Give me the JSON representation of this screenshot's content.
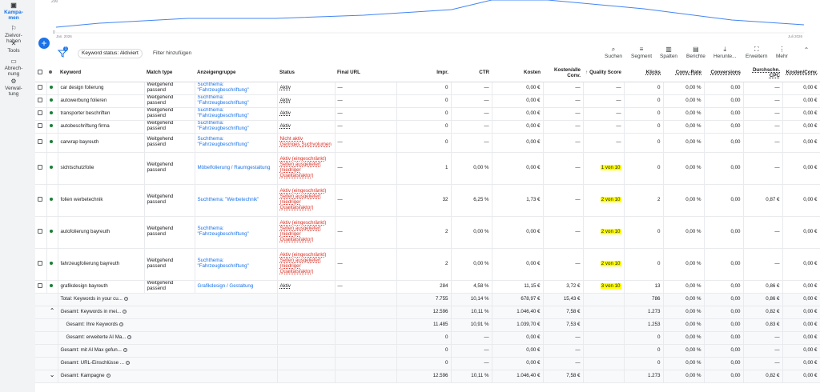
{
  "nav": [
    {
      "label": "Kampa-\nmen",
      "icon": "campaign-icon",
      "active": true
    },
    {
      "label": "Zielvor-\nhaben",
      "icon": "goals-icon",
      "active": false
    },
    {
      "label": "Tools",
      "icon": "tools-icon",
      "active": false
    },
    {
      "label": "Abrech-\nnung",
      "icon": "billing-icon",
      "active": false
    },
    {
      "label": "Verwal-\ntung",
      "icon": "admin-icon",
      "active": false
    }
  ],
  "chart": {
    "y_top": "200",
    "y_bottom": "0",
    "x_start": "Jan. 2026",
    "x_end": "Juli 2026"
  },
  "toolbar": {
    "filter_badge": "1",
    "chip": "Keyword status: Aktiviert",
    "add_filter": "Filter hinzufügen",
    "buttons": [
      {
        "label": "Suchen",
        "icon": "search-icon"
      },
      {
        "label": "Segment",
        "icon": "segment-icon"
      },
      {
        "label": "Spalten",
        "icon": "columns-icon"
      },
      {
        "label": "Berichte",
        "icon": "reports-icon"
      },
      {
        "label": "Herunte...",
        "icon": "download-icon"
      },
      {
        "label": "Erweitern",
        "icon": "expand-icon"
      },
      {
        "label": "Mehr",
        "icon": "more-vert-icon"
      }
    ]
  },
  "columns": [
    "Keyword",
    "Match type",
    "Anzeigengruppe",
    "Status",
    "Final URL",
    "Impr.",
    "CTR",
    "Kosten",
    "Kosten/alle Conv.",
    "Quality Score",
    "Klicks",
    "Conv.-Rate",
    "Conversions",
    "Durchschn. CPC",
    "Kosten/Conv."
  ],
  "rows": [
    {
      "keyword": "car design folierung",
      "match": "Weitgehend passend",
      "group": "Suchthema: \"Fahrzeugbeschriftung\"",
      "status": [
        "Aktiv"
      ],
      "status_red": false,
      "url": "—",
      "impr": "0",
      "ctr": "—",
      "kosten": "0,00 €",
      "kac": "—",
      "qs": "—",
      "klicks": "0",
      "cr": "0,00 %",
      "conv": "0,00",
      "cpc": "—",
      "kpc": "0,00 €"
    },
    {
      "keyword": "autowerbung folieren",
      "match": "Weitgehend passend",
      "group": "Suchthema: \"Fahrzeugbeschriftung\"",
      "status": [
        "Aktiv"
      ],
      "status_red": false,
      "url": "—",
      "impr": "0",
      "ctr": "—",
      "kosten": "0,00 €",
      "kac": "—",
      "qs": "—",
      "klicks": "0",
      "cr": "0,00 %",
      "conv": "0,00",
      "cpc": "—",
      "kpc": "0,00 €"
    },
    {
      "keyword": "transporter beschriften",
      "match": "Weitgehend passend",
      "group": "Suchthema: \"Fahrzeugbeschriftung\"",
      "status": [
        "Aktiv"
      ],
      "status_red": false,
      "url": "—",
      "impr": "0",
      "ctr": "—",
      "kosten": "0,00 €",
      "kac": "—",
      "qs": "—",
      "klicks": "0",
      "cr": "0,00 %",
      "conv": "0,00",
      "cpc": "—",
      "kpc": "0,00 €"
    },
    {
      "keyword": "autobeschriftung firma",
      "match": "Weitgehend passend",
      "group": "Suchthema: \"Fahrzeugbeschriftung\"",
      "status": [
        "Aktiv"
      ],
      "status_red": false,
      "url": "—",
      "impr": "0",
      "ctr": "—",
      "kosten": "0,00 €",
      "kac": "—",
      "qs": "—",
      "klicks": "0",
      "cr": "0,00 %",
      "conv": "0,00",
      "cpc": "—",
      "kpc": "0,00 €"
    },
    {
      "keyword": "carwrap bayreuth",
      "match": "Weitgehend passend",
      "group": "Suchthema: \"Fahrzeugbeschriftung\"",
      "status": [
        "Nicht aktiv",
        "Geringes Suchvolumen"
      ],
      "status_red": true,
      "url": "—",
      "impr": "0",
      "ctr": "—",
      "kosten": "0,00 €",
      "kac": "—",
      "qs": "—",
      "klicks": "0",
      "cr": "0,00 %",
      "conv": "0,00",
      "cpc": "—",
      "kpc": "0,00 €"
    },
    {
      "keyword": "sichtschutzfolie",
      "match": "Weitgehend passend",
      "group": "Möbelfolierung / Raumgestaltung",
      "status": [
        "Aktiv (eingeschränkt)",
        "Selten ausgeliefert",
        "(niedriger",
        "Qualitätsfaktor)"
      ],
      "status_red": true,
      "url": "—",
      "impr": "1",
      "ctr": "0,00 %",
      "kosten": "0,00 €",
      "kac": "—",
      "qs": "1 von 10",
      "klicks": "0",
      "cr": "0,00 %",
      "conv": "0,00",
      "cpc": "—",
      "kpc": "0,00 €"
    },
    {
      "keyword": "folien werbetechnik",
      "match": "Weitgehend passend",
      "group": "Suchthema: \"Werbetechnik\"",
      "status": [
        "Aktiv (eingeschränkt)",
        "Selten ausgeliefert",
        "(niedriger",
        "Qualitätsfaktor)"
      ],
      "status_red": true,
      "url": "—",
      "impr": "32",
      "ctr": "6,25 %",
      "kosten": "1,73 €",
      "kac": "—",
      "qs": "2 von 10",
      "klicks": "2",
      "cr": "0,00 %",
      "conv": "0,00",
      "cpc": "0,87 €",
      "kpc": "0,00 €"
    },
    {
      "keyword": "autofolierung bayreuth",
      "match": "Weitgehend passend",
      "group": "Suchthema: \"Fahrzeugbeschriftung\"",
      "status": [
        "Aktiv (eingeschränkt)",
        "Selten ausgeliefert",
        "(niedriger",
        "Qualitätsfaktor)"
      ],
      "status_red": true,
      "url": "—",
      "impr": "2",
      "ctr": "0,00 %",
      "kosten": "0,00 €",
      "kac": "—",
      "qs": "2 von 10",
      "klicks": "0",
      "cr": "0,00 %",
      "conv": "0,00",
      "cpc": "—",
      "kpc": "0,00 €"
    },
    {
      "keyword": "fahrzeugfolierung bayreuth",
      "match": "Weitgehend passend",
      "group": "Suchthema: \"Fahrzeugbeschriftung\"",
      "status": [
        "Aktiv (eingeschränkt)",
        "Selten ausgeliefert",
        "(niedriger",
        "Qualitätsfaktor)"
      ],
      "status_red": true,
      "url": "—",
      "impr": "2",
      "ctr": "0,00 %",
      "kosten": "0,00 €",
      "kac": "—",
      "qs": "2 von 10",
      "klicks": "0",
      "cr": "0,00 %",
      "conv": "0,00",
      "cpc": "—",
      "kpc": "0,00 €"
    },
    {
      "keyword": "grafikdesign bayreuth",
      "match": "Weitgehend passend",
      "group": "Grafikdesign / Gestaltung",
      "status": [
        "Aktiv"
      ],
      "status_red": false,
      "url": "—",
      "impr": "284",
      "ctr": "4,58 %",
      "kosten": "11,15 €",
      "kac": "3,72 €",
      "qs": "3 von 10",
      "klicks": "13",
      "cr": "0,00 %",
      "conv": "0,00",
      "cpc": "0,86 €",
      "kpc": "0,00 €"
    }
  ],
  "totals": [
    {
      "label": "Total: Keywords in your cu...",
      "indent": 0,
      "chev": "",
      "impr": "7.755",
      "ctr": "10,14 %",
      "kosten": "678,97 €",
      "kac": "15,43 €",
      "klicks": "786",
      "cr": "0,00 %",
      "conv": "0,00",
      "cpc": "0,86 €",
      "kpc": "0,00 €"
    },
    {
      "label": "Gesamt: Keywords in mei...",
      "indent": 0,
      "chev": "⌃",
      "impr": "12.596",
      "ctr": "10,11 %",
      "kosten": "1.046,40 €",
      "kac": "7,58 €",
      "klicks": "1.273",
      "cr": "0,00 %",
      "conv": "0,00",
      "cpc": "0,82 €",
      "kpc": "0,00 €"
    },
    {
      "label": "Gesamt: Ihre Keywords",
      "indent": 1,
      "chev": "",
      "impr": "11.485",
      "ctr": "10,91 %",
      "kosten": "1.039,70 €",
      "kac": "7,53 €",
      "klicks": "1.253",
      "cr": "0,00 %",
      "conv": "0,00",
      "cpc": "0,83 €",
      "kpc": "0,00 €"
    },
    {
      "label": "Gesamt: erweiterte AI Ma...",
      "indent": 1,
      "chev": "",
      "impr": "0",
      "ctr": "—",
      "kosten": "0,00 €",
      "kac": "—",
      "klicks": "0",
      "cr": "0,00 %",
      "conv": "0,00",
      "cpc": "—",
      "kpc": "0,00 €"
    },
    {
      "label": "Gesamt: mit AI Max gefun...",
      "indent": 0,
      "chev": "",
      "impr": "0",
      "ctr": "—",
      "kosten": "0,00 €",
      "kac": "—",
      "klicks": "0",
      "cr": "0,00 %",
      "conv": "0,00",
      "cpc": "—",
      "kpc": "0,00 €"
    },
    {
      "label": "Gesamt: URL-Einschlüsse ...",
      "indent": 0,
      "chev": "",
      "impr": "0",
      "ctr": "—",
      "kosten": "0,00 €",
      "kac": "—",
      "klicks": "0",
      "cr": "0,00 %",
      "conv": "0,00",
      "cpc": "—",
      "kpc": "0,00 €"
    },
    {
      "label": "Gesamt: Kampagne",
      "indent": 0,
      "chev": "⌄",
      "impr": "12.596",
      "ctr": "10,11 %",
      "kosten": "1.046,40 €",
      "kac": "7,58 €",
      "klicks": "1.273",
      "cr": "0,00 %",
      "conv": "0,00",
      "cpc": "0,82 €",
      "kpc": "0,00 €"
    }
  ],
  "colors": {
    "accent": "#1a73e8",
    "status_red": "#d93025",
    "qs_highlight": "#ffff00",
    "enabled_dot": "#188038"
  }
}
